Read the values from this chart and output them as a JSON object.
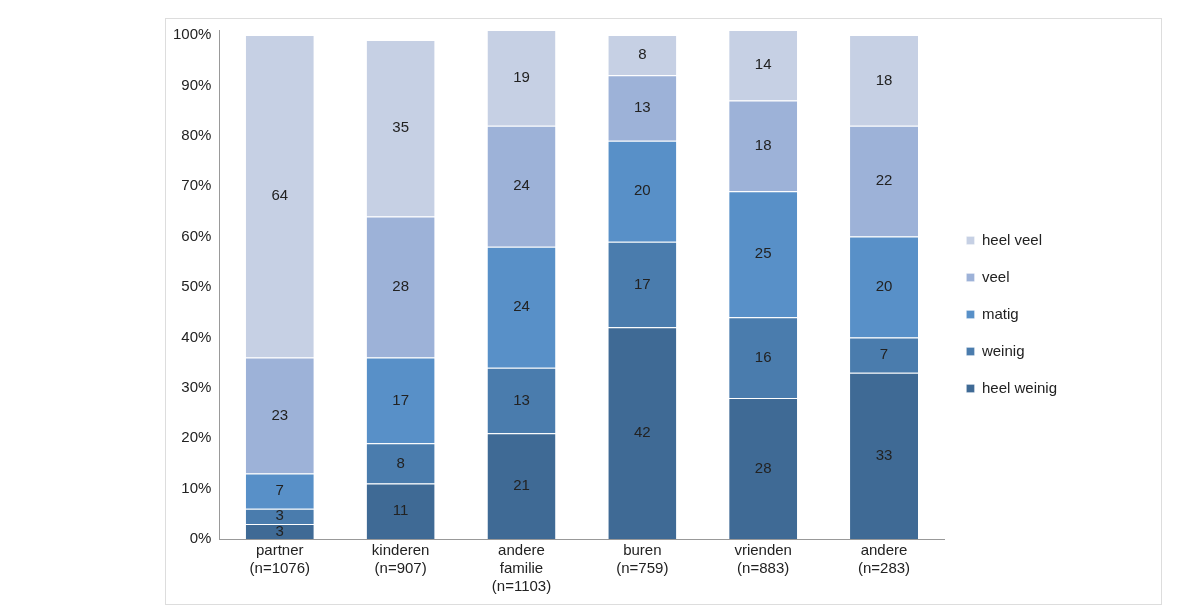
{
  "chart_data": {
    "type": "bar",
    "stacked": true,
    "data_labels": true,
    "legend": "right",
    "grid": false,
    "categories": [
      "partner (n=1076)",
      "kinderen (n=907)",
      "andere familie (n=1103)",
      "buren (n=759)",
      "vrienden (n=883)",
      "andere (n=283)"
    ],
    "series": [
      {
        "name": "heel weinig",
        "color": "#3f6a95",
        "values": [
          3,
          11,
          21,
          42,
          28,
          33
        ]
      },
      {
        "name": "weinig",
        "color": "#4a7cad",
        "values": [
          3,
          8,
          13,
          17,
          16,
          7
        ]
      },
      {
        "name": "matig",
        "color": "#5890c8",
        "values": [
          7,
          17,
          24,
          20,
          25,
          20
        ]
      },
      {
        "name": "veel",
        "color": "#9db2d8",
        "values": [
          23,
          28,
          24,
          13,
          18,
          22
        ]
      },
      {
        "name": "heel veel",
        "color": "#c6d0e4",
        "values": [
          64,
          35,
          19,
          8,
          14,
          18
        ]
      }
    ],
    "ylim": [
      0,
      101
    ],
    "yticks": [
      {
        "value": 0,
        "label": "0%"
      },
      {
        "value": 10,
        "label": "10%"
      },
      {
        "value": 20,
        "label": "20%"
      },
      {
        "value": 30,
        "label": "30%"
      },
      {
        "value": 40,
        "label": "40%"
      },
      {
        "value": 50,
        "label": "50%"
      },
      {
        "value": 60,
        "label": "60%"
      },
      {
        "value": 70,
        "label": "70%"
      },
      {
        "value": 80,
        "label": "80%"
      },
      {
        "value": 90,
        "label": "90%"
      },
      {
        "value": 100,
        "label": "100%"
      }
    ]
  }
}
